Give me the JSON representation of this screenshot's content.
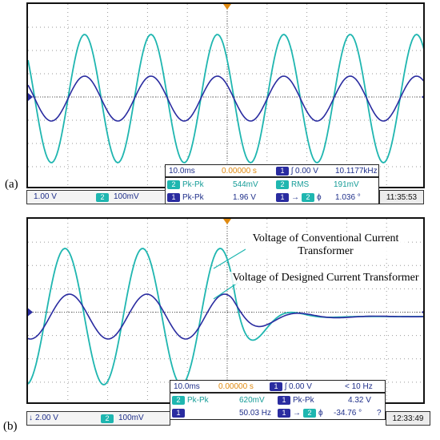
{
  "colors": {
    "ch1": "#2a2ca0",
    "ch2": "#1fb6b0",
    "trigger": "#e08a10",
    "grid": "#9a9a9a"
  },
  "panels": [
    {
      "label": "(a)",
      "timebase": "10.0ms",
      "delay": "0.00000 s",
      "trigger_ch": "1",
      "trigger_level": "0.00 V",
      "freq": "10.1177kHz",
      "ch1_scale": "1.00 V",
      "ch2_num": "2",
      "ch2_scale": "100mV",
      "m1_ch": "2",
      "m1_name": "Pk-Pk",
      "m1_value": "544mV",
      "m2_ch": "2",
      "m2_name": "RMS",
      "m2_value": "191mV",
      "m3_ch": "1",
      "m3_name": "Pk-Pk",
      "m3_value": "1.96 V",
      "m4_a": "1",
      "m4_b": "2",
      "m4_name": "ϕ",
      "m4_value": "1.036 °",
      "clock": "11:35:53"
    },
    {
      "label": "(b)",
      "timebase": "10.0ms",
      "delay": "0.00000 s",
      "trigger_ch": "1",
      "trigger_level": "0.00 V",
      "freq": "< 10 Hz",
      "ch1_scale": "2.00 V",
      "ch2_num": "2",
      "ch2_scale": "100mV",
      "m1_ch": "2",
      "m1_name": "Pk-Pk",
      "m1_value": "620mV",
      "m2_ch": "1",
      "m2_name": "Pk-Pk",
      "m2_value": "4.32 V",
      "m3_ch": "1",
      "m3_name": "",
      "m3_value": "50.03 Hz",
      "m4_a": "1",
      "m4_b": "2",
      "m4_name": "ϕ",
      "m4_value": "-34.76 °",
      "m4_extra": "?",
      "clock": "12:33:49",
      "annotation_top": "Voltage of Conventional Current Transformer",
      "annotation_bottom": "Voltage of Designed Current Transformer"
    }
  ]
}
